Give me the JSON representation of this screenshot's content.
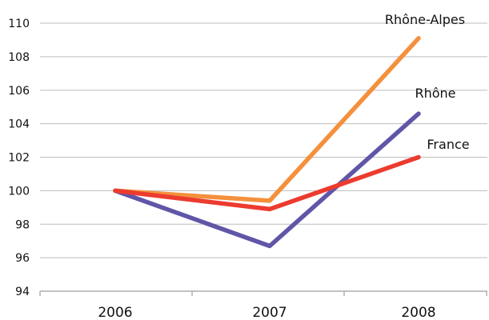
{
  "chart_data": {
    "type": "line",
    "categories": [
      "2006",
      "2007",
      "2008"
    ],
    "series": [
      {
        "name": "Rhône-Alpes",
        "values": [
          100,
          99.4,
          109.1
        ],
        "color": "#f4903c"
      },
      {
        "name": "Rhône",
        "values": [
          100,
          96.7,
          104.6
        ],
        "color": "#5f56a8"
      },
      {
        "name": "France",
        "values": [
          100,
          98.9,
          102.0
        ],
        "color": "#ec3b2f"
      }
    ],
    "y_ticks": [
      "94",
      "96",
      "98",
      "100",
      "102",
      "104",
      "106",
      "108",
      "110"
    ],
    "ylim": [
      94,
      110
    ],
    "grid": true,
    "title": "",
    "xlabel": "",
    "ylabel": ""
  }
}
